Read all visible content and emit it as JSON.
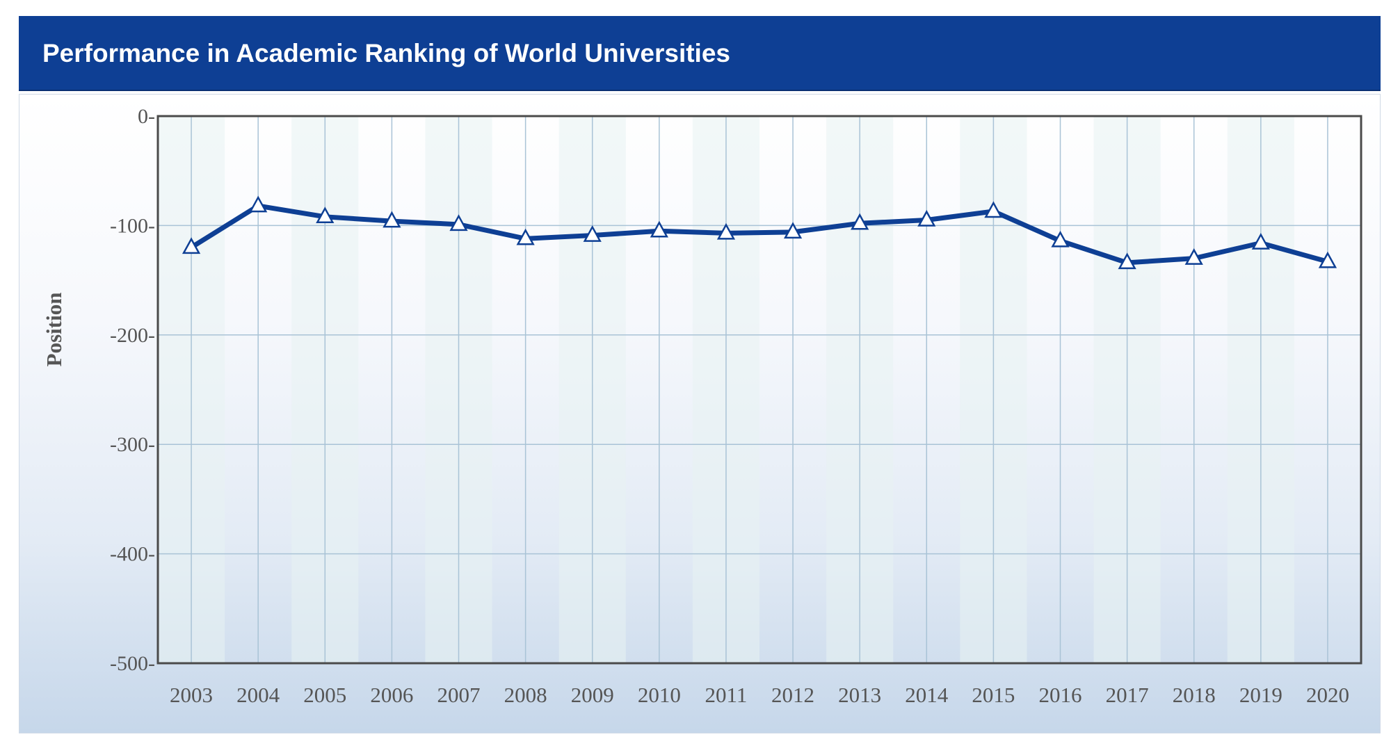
{
  "header": {
    "title": "Performance in Academic Ranking of World Universities"
  },
  "colors": {
    "header_bg": "#0e3f94",
    "line": "#0e3f94",
    "marker_fill": "#ffffff",
    "grid": "#a9c3d6",
    "stripe": "#e8f3f3"
  },
  "chart_data": {
    "type": "line",
    "title": "",
    "xlabel": "",
    "ylabel": "Position",
    "x": [
      "2003",
      "2004",
      "2005",
      "2006",
      "2007",
      "2008",
      "2009",
      "2010",
      "2011",
      "2012",
      "2013",
      "2014",
      "2015",
      "2016",
      "2017",
      "2018",
      "2019",
      "2020"
    ],
    "series": [
      {
        "values": [
          -120,
          -82,
          -92,
          -96,
          -99,
          -112,
          -109,
          -105,
          -107,
          -106,
          -98,
          -95,
          -87,
          -114,
          -134,
          -130,
          -116,
          -133
        ],
        "marker": "triangle"
      }
    ],
    "ylim": [
      -500,
      0
    ],
    "yticks": [
      0,
      -100,
      -200,
      -300,
      -400,
      -500
    ],
    "ytick_labels": [
      "0-",
      "-100-",
      "-200-",
      "-300-",
      "-400-",
      "-500-"
    ],
    "grid": true,
    "legend": "none"
  }
}
